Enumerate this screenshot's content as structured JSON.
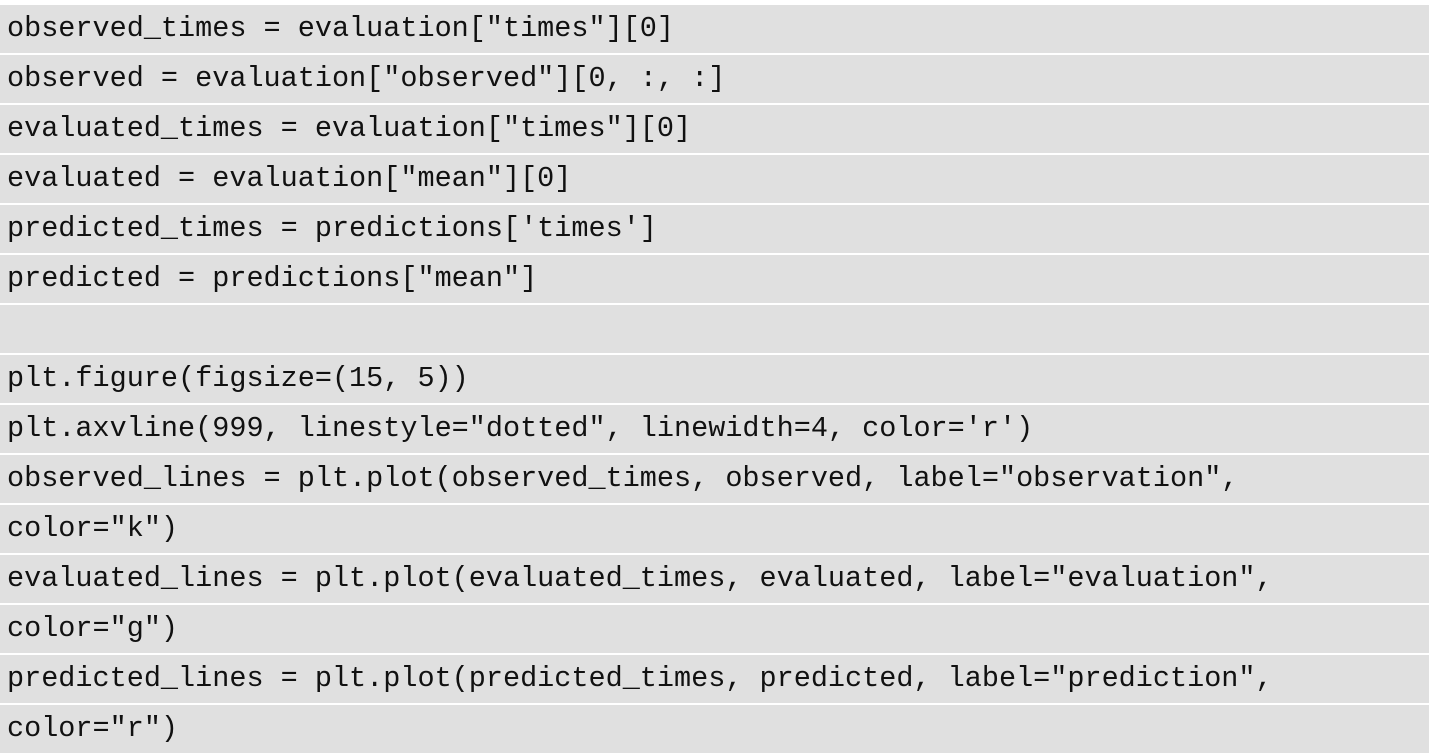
{
  "code": {
    "lines": [
      "observed_times = evaluation[\"times\"][0]",
      "observed = evaluation[\"observed\"][0, :, :]",
      "evaluated_times = evaluation[\"times\"][0]",
      "evaluated = evaluation[\"mean\"][0]",
      "predicted_times = predictions['times']",
      "predicted = predictions[\"mean\"]",
      "",
      "plt.figure(figsize=(15, 5))",
      "plt.axvline(999, linestyle=\"dotted\", linewidth=4, color='r')",
      "observed_lines = plt.plot(observed_times, observed, label=\"observation\",",
      "color=\"k\")",
      "evaluated_lines = plt.plot(evaluated_times, evaluated, label=\"evaluation\",",
      "color=\"g\")",
      "predicted_lines = plt.plot(predicted_times, predicted, label=\"prediction\",",
      "color=\"r\")"
    ]
  }
}
